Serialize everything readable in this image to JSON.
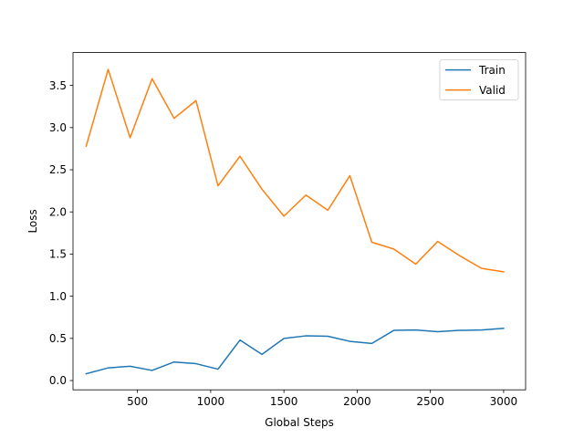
{
  "chart_data": {
    "type": "line",
    "title": "",
    "xlabel": "Global Steps",
    "ylabel": "Loss",
    "xlim": [
      60,
      3150
    ],
    "ylim": [
      -0.11,
      3.89
    ],
    "xticks": [
      500,
      1000,
      1500,
      2000,
      2500,
      3000
    ],
    "yticks": [
      0.0,
      0.5,
      1.0,
      1.5,
      2.0,
      2.5,
      3.0,
      3.5
    ],
    "grid": false,
    "legend_position": "top-right",
    "x": [
      150,
      300,
      450,
      600,
      750,
      900,
      1050,
      1200,
      1350,
      1500,
      1650,
      1800,
      1950,
      2100,
      2250,
      2400,
      2550,
      2700,
      2850,
      3000
    ],
    "series": [
      {
        "name": "Train",
        "color": "#1f77b4",
        "values": [
          0.08,
          0.15,
          0.17,
          0.12,
          0.22,
          0.2,
          0.135,
          0.48,
          0.31,
          0.5,
          0.53,
          0.525,
          0.465,
          0.44,
          0.595,
          0.6,
          0.58,
          0.595,
          0.6,
          0.62
        ]
      },
      {
        "name": "Valid",
        "color": "#ff7f0e",
        "values": [
          2.78,
          3.69,
          2.88,
          3.58,
          3.11,
          3.32,
          2.31,
          2.66,
          2.27,
          1.95,
          2.2,
          2.02,
          2.43,
          1.64,
          1.56,
          1.38,
          1.65,
          1.48,
          1.33,
          1.29
        ]
      }
    ]
  }
}
